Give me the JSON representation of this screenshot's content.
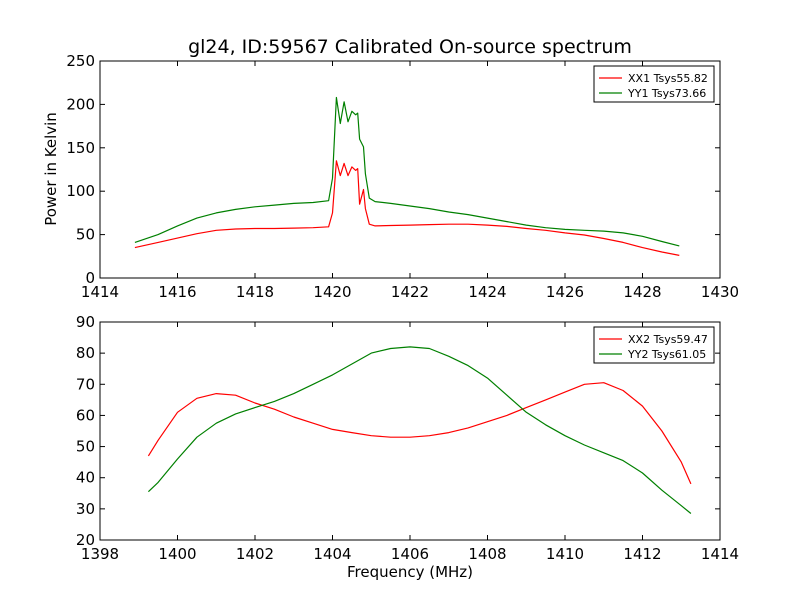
{
  "chart_data": [
    {
      "type": "line",
      "title": "gl24, ID:59567 Calibrated On-source spectrum",
      "xlabel": "",
      "ylabel": "Power in Kelvin",
      "xlim": [
        1414,
        1430
      ],
      "ylim": [
        0,
        250
      ],
      "xticks": [
        "1414",
        "1416",
        "1418",
        "1420",
        "1422",
        "1424",
        "1426",
        "1428",
        "1430"
      ],
      "yticks": [
        "0",
        "50",
        "100",
        "150",
        "200",
        "250"
      ],
      "grid": false,
      "legend_position": "top-right",
      "series": [
        {
          "name": "XX1 Tsys55.82",
          "color": "#ff0000",
          "points": [
            [
              1414.9,
              35
            ],
            [
              1415.5,
              41
            ],
            [
              1416,
              46
            ],
            [
              1416.5,
              51
            ],
            [
              1417,
              55
            ],
            [
              1417.5,
              56.5
            ],
            [
              1418,
              57
            ],
            [
              1418.5,
              57
            ],
            [
              1419,
              57.5
            ],
            [
              1419.5,
              58
            ],
            [
              1419.9,
              59
            ],
            [
              1420.0,
              75
            ],
            [
              1420.1,
              135
            ],
            [
              1420.2,
              118
            ],
            [
              1420.3,
              132
            ],
            [
              1420.4,
              118
            ],
            [
              1420.5,
              128
            ],
            [
              1420.6,
              124
            ],
            [
              1420.65,
              126
            ],
            [
              1420.7,
              85
            ],
            [
              1420.8,
              102
            ],
            [
              1420.85,
              80
            ],
            [
              1420.95,
              62
            ],
            [
              1421.1,
              60
            ],
            [
              1421.5,
              60.5
            ],
            [
              1422,
              61
            ],
            [
              1422.5,
              61.5
            ],
            [
              1423,
              62
            ],
            [
              1423.5,
              62
            ],
            [
              1424,
              61
            ],
            [
              1424.5,
              59.5
            ],
            [
              1425,
              57
            ],
            [
              1425.5,
              55
            ],
            [
              1426,
              52
            ],
            [
              1426.5,
              49.5
            ],
            [
              1427,
              45.5
            ],
            [
              1427.5,
              41
            ],
            [
              1428,
              35
            ],
            [
              1428.5,
              30
            ],
            [
              1428.95,
              26
            ]
          ]
        },
        {
          "name": "YY1 Tsys73.66",
          "color": "#008000",
          "points": [
            [
              1414.9,
              41
            ],
            [
              1415.5,
              50
            ],
            [
              1416,
              60
            ],
            [
              1416.5,
              69
            ],
            [
              1417,
              75
            ],
            [
              1417.5,
              79
            ],
            [
              1418,
              82
            ],
            [
              1418.5,
              84
            ],
            [
              1419,
              86
            ],
            [
              1419.5,
              87
            ],
            [
              1419.9,
              89
            ],
            [
              1420.0,
              115
            ],
            [
              1420.1,
              208
            ],
            [
              1420.2,
              178
            ],
            [
              1420.3,
              203
            ],
            [
              1420.4,
              180
            ],
            [
              1420.5,
              192
            ],
            [
              1420.6,
              188
            ],
            [
              1420.65,
              190
            ],
            [
              1420.7,
              160
            ],
            [
              1420.8,
              151
            ],
            [
              1420.85,
              120
            ],
            [
              1420.95,
              92
            ],
            [
              1421.1,
              88
            ],
            [
              1421.5,
              86
            ],
            [
              1422,
              83
            ],
            [
              1422.5,
              80
            ],
            [
              1423,
              76
            ],
            [
              1423.5,
              73
            ],
            [
              1424,
              69
            ],
            [
              1424.5,
              65
            ],
            [
              1425,
              61
            ],
            [
              1425.5,
              58
            ],
            [
              1426,
              56
            ],
            [
              1426.5,
              55
            ],
            [
              1427,
              54
            ],
            [
              1427.5,
              52
            ],
            [
              1428,
              48
            ],
            [
              1428.5,
              42
            ],
            [
              1428.95,
              37
            ]
          ]
        }
      ]
    },
    {
      "type": "line",
      "title": "",
      "xlabel": "Frequency (MHz)",
      "ylabel": "",
      "xlim": [
        1398,
        1414
      ],
      "ylim": [
        20,
        90
      ],
      "xticks": [
        "1398",
        "1400",
        "1402",
        "1404",
        "1406",
        "1408",
        "1410",
        "1412",
        "1414"
      ],
      "yticks": [
        "20",
        "30",
        "40",
        "50",
        "60",
        "70",
        "80",
        "90"
      ],
      "grid": false,
      "legend_position": "top-right",
      "series": [
        {
          "name": "XX2 Tsys59.47",
          "color": "#ff0000",
          "points": [
            [
              1399.25,
              47
            ],
            [
              1399.5,
              52
            ],
            [
              1400,
              61
            ],
            [
              1400.5,
              65.5
            ],
            [
              1401,
              67
            ],
            [
              1401.5,
              66.5
            ],
            [
              1402,
              64
            ],
            [
              1402.5,
              62
            ],
            [
              1403,
              59.5
            ],
            [
              1403.5,
              57.5
            ],
            [
              1404,
              55.5
            ],
            [
              1404.5,
              54.5
            ],
            [
              1405,
              53.5
            ],
            [
              1405.5,
              53
            ],
            [
              1406,
              53
            ],
            [
              1406.5,
              53.5
            ],
            [
              1407,
              54.5
            ],
            [
              1407.5,
              56
            ],
            [
              1408,
              58
            ],
            [
              1408.5,
              60
            ],
            [
              1409,
              62.5
            ],
            [
              1409.5,
              65
            ],
            [
              1410,
              67.5
            ],
            [
              1410.5,
              70
            ],
            [
              1411,
              70.5
            ],
            [
              1411.5,
              68
            ],
            [
              1412,
              63
            ],
            [
              1412.5,
              55
            ],
            [
              1413,
              45
            ],
            [
              1413.25,
              38
            ]
          ]
        },
        {
          "name": "YY2 Tsys61.05",
          "color": "#008000",
          "points": [
            [
              1399.25,
              35.5
            ],
            [
              1399.5,
              38.5
            ],
            [
              1400,
              46
            ],
            [
              1400.5,
              53
            ],
            [
              1401,
              57.5
            ],
            [
              1401.5,
              60.5
            ],
            [
              1402,
              62.5
            ],
            [
              1402.5,
              64.5
            ],
            [
              1403,
              67
            ],
            [
              1403.5,
              70
            ],
            [
              1404,
              73
            ],
            [
              1404.5,
              76.5
            ],
            [
              1405,
              80
            ],
            [
              1405.5,
              81.5
            ],
            [
              1406,
              82
            ],
            [
              1406.5,
              81.5
            ],
            [
              1407,
              79
            ],
            [
              1407.5,
              76
            ],
            [
              1408,
              72
            ],
            [
              1408.5,
              66.5
            ],
            [
              1409,
              61
            ],
            [
              1409.5,
              57
            ],
            [
              1410,
              53.5
            ],
            [
              1410.5,
              50.5
            ],
            [
              1411,
              48
            ],
            [
              1411.5,
              45.5
            ],
            [
              1412,
              41.5
            ],
            [
              1412.5,
              36
            ],
            [
              1413,
              31
            ],
            [
              1413.25,
              28.5
            ]
          ]
        }
      ]
    }
  ]
}
